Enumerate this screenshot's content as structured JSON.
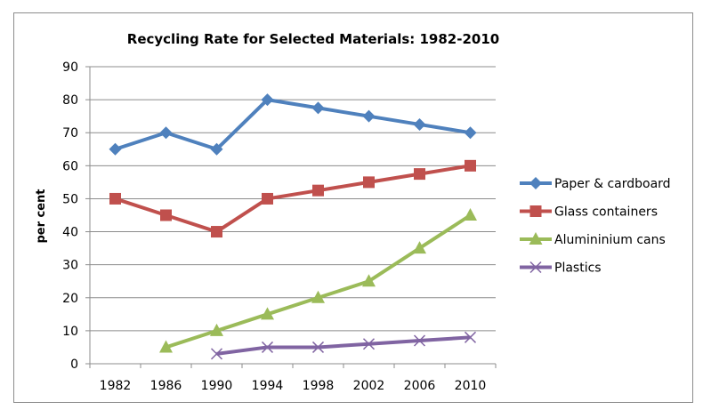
{
  "chart_data": {
    "type": "line",
    "title": "Recycling Rate for Selected Materials: 1982-2010",
    "xlabel": "",
    "ylabel": "per cent",
    "categories": [
      "1982",
      "1986",
      "1990",
      "1994",
      "1998",
      "2002",
      "2006",
      "2010"
    ],
    "ylim": [
      0,
      90
    ],
    "yticks": [
      0,
      10,
      20,
      30,
      40,
      50,
      60,
      70,
      80,
      90
    ],
    "yticklabels": [
      "0",
      "10",
      "20",
      "30",
      "40",
      "50",
      "60",
      "70",
      "80",
      "90"
    ],
    "grid": true,
    "legend_position": "right",
    "series": [
      {
        "name": "Paper & cardboard",
        "color": "#4f81bd",
        "marker": "diamond",
        "values": [
          65,
          70,
          65,
          80,
          77.5,
          75,
          72.5,
          70
        ]
      },
      {
        "name": "Glass containers",
        "color": "#c0504d",
        "marker": "square",
        "values": [
          50,
          45,
          40,
          50,
          52.5,
          55,
          57.5,
          60
        ]
      },
      {
        "name": "Alumininium cans",
        "color": "#9bbb59",
        "marker": "triangle",
        "values": [
          null,
          5,
          10,
          15,
          20,
          25,
          35,
          45
        ]
      },
      {
        "name": "Plastics",
        "color": "#8064a2",
        "marker": "x",
        "values": [
          null,
          null,
          3,
          5,
          5,
          6,
          7,
          8
        ]
      }
    ]
  }
}
